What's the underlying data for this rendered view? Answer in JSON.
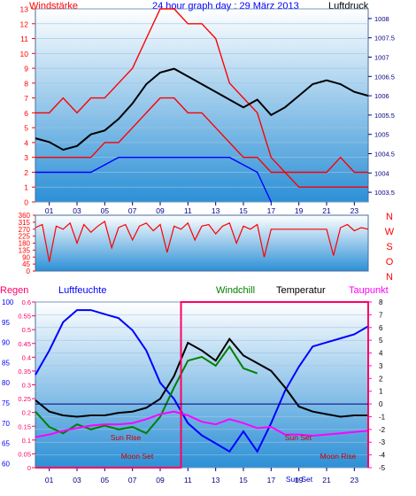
{
  "header": {
    "left_label": "Windstärke",
    "title": "24 hour graph day : 29 März 2013",
    "right_label": "Luftdruck"
  },
  "chart_data": [
    {
      "id": "wind-pressure",
      "type": "line",
      "title": "24 hour graph day : 29 März 2013",
      "x_ticks": [
        "01",
        "03",
        "05",
        "07",
        "09",
        "11",
        "13",
        "15",
        "17",
        "19",
        "21",
        "23"
      ],
      "xlim": [
        0,
        24
      ],
      "left_axis": {
        "label": "Windstärke",
        "range": [
          0,
          13
        ],
        "ticks": [
          0,
          1,
          2,
          3,
          4,
          5,
          6,
          7,
          8,
          9,
          10,
          11,
          12,
          13
        ]
      },
      "right_axis": {
        "label": "Luftdruck",
        "range": [
          1003.25,
          1008.25
        ],
        "ticks": [
          1003.5,
          1004,
          1004.5,
          1005,
          1005.5,
          1006,
          1006.5,
          1007,
          1007.5,
          1008
        ]
      },
      "series": [
        {
          "name": "Windstärke",
          "color": "#ff0000",
          "axis": "left",
          "x": [
            0,
            1,
            2,
            3,
            4,
            5,
            6,
            7,
            8,
            9,
            10,
            11,
            12,
            13,
            14,
            15,
            16,
            17,
            18,
            19,
            20,
            21,
            22,
            23,
            24
          ],
          "y": [
            3,
            3,
            3,
            3,
            3,
            4,
            4,
            5,
            6,
            7,
            7,
            6,
            6,
            5,
            4,
            3,
            3,
            2,
            2,
            1,
            1,
            1,
            1,
            1,
            1
          ]
        },
        {
          "name": "wind-gust",
          "color": "#ff0000",
          "axis": "left",
          "x": [
            0,
            1,
            2,
            3,
            4,
            5,
            6,
            7,
            8,
            9,
            10,
            11,
            12,
            13,
            14,
            15,
            16,
            17,
            18,
            19,
            20,
            21,
            22,
            23,
            24
          ],
          "y": [
            6,
            6,
            7,
            6,
            7,
            7,
            8,
            9,
            11,
            13,
            13,
            12,
            12,
            11,
            8,
            7,
            6,
            3,
            2,
            2,
            2,
            2,
            3,
            2,
            2
          ]
        },
        {
          "name": "wind-direction-band",
          "color": "#0000ff",
          "axis": "left",
          "x": [
            0,
            2,
            4,
            6,
            8,
            10,
            12,
            14,
            16,
            17
          ],
          "y": [
            2,
            2,
            2,
            3,
            3,
            3,
            3,
            3,
            2,
            0
          ]
        },
        {
          "name": "Luftdruck",
          "color": "#000000",
          "axis": "right",
          "x": [
            0,
            1,
            2,
            3,
            4,
            5,
            6,
            7,
            8,
            9,
            10,
            11,
            12,
            13,
            14,
            15,
            16,
            17,
            18,
            19,
            20,
            21,
            22,
            23,
            24
          ],
          "y": [
            1004.9,
            1004.8,
            1004.6,
            1004.7,
            1005.0,
            1005.1,
            1005.4,
            1005.8,
            1006.3,
            1006.6,
            1006.7,
            1006.5,
            1006.3,
            1006.1,
            1005.9,
            1005.7,
            1005.9,
            1005.5,
            1005.7,
            1006.0,
            1006.3,
            1006.4,
            1006.3,
            1006.1,
            1006.0
          ]
        }
      ]
    },
    {
      "id": "wind-direction",
      "type": "line",
      "xlim": [
        0,
        24
      ],
      "left_axis": {
        "range": [
          0,
          360
        ],
        "ticks": [
          0,
          45,
          90,
          135,
          180,
          225,
          270,
          315,
          360
        ]
      },
      "compass_labels": [
        "N",
        "W",
        "S",
        "O",
        "N"
      ],
      "series": [
        {
          "name": "wind-direction",
          "color": "#ff0000",
          "x": [
            0,
            0.5,
            1,
            1.5,
            2,
            2.5,
            3,
            3.5,
            4,
            4.5,
            5,
            5.5,
            6,
            6.5,
            7,
            7.5,
            8,
            8.5,
            9,
            9.5,
            10,
            10.5,
            11,
            11.5,
            12,
            12.5,
            13,
            13.5,
            14,
            14.5,
            15,
            15.5,
            16,
            16.5,
            17,
            18,
            19,
            20,
            21,
            21.5,
            22,
            22.5,
            23,
            23.5,
            24
          ],
          "y": [
            280,
            300,
            60,
            290,
            270,
            310,
            180,
            300,
            250,
            290,
            320,
            150,
            280,
            300,
            200,
            290,
            310,
            260,
            300,
            120,
            290,
            270,
            310,
            200,
            290,
            300,
            240,
            290,
            310,
            180,
            290,
            270,
            300,
            90,
            270,
            270,
            270,
            270,
            270,
            100,
            280,
            300,
            260,
            280,
            270
          ]
        }
      ]
    },
    {
      "id": "weather",
      "type": "line",
      "xlim": [
        0,
        24
      ],
      "labels": [
        "Regen",
        "Luftfeuchte",
        "Windchill",
        "Temperatur",
        "Taupunkt"
      ],
      "rain_axis": {
        "label": "Regen",
        "range": [
          0,
          0.6
        ],
        "ticks": [
          0,
          0.05,
          0.1,
          0.15,
          0.2,
          0.25,
          0.3,
          0.35,
          0.4,
          0.45,
          0.5,
          0.55,
          0.6
        ]
      },
      "humidity_axis": {
        "label": "Luftfeuchte",
        "range": [
          59,
          100
        ],
        "ticks": [
          60,
          65,
          70,
          75,
          80,
          85,
          90,
          95,
          100
        ]
      },
      "temp_axis": {
        "label": "Temperatur",
        "range": [
          -5,
          8
        ],
        "ticks": [
          -5,
          -4,
          -3,
          -2,
          -1,
          0,
          1,
          2,
          3,
          4,
          5,
          6,
          7,
          8
        ]
      },
      "annotations": [
        "Sun Rise",
        "Moon Set",
        "Sun Set",
        "Moon Rise",
        "Sun Set"
      ],
      "series": [
        {
          "name": "Luftfeuchte",
          "color": "#0000ff",
          "axis": "humidity",
          "x": [
            0,
            1,
            2,
            3,
            4,
            5,
            6,
            7,
            8,
            9,
            10,
            11,
            12,
            13,
            14,
            15,
            16,
            17,
            18,
            19,
            20,
            21,
            22,
            23,
            24
          ],
          "y": [
            82,
            88,
            95,
            98,
            98,
            97,
            96,
            93,
            88,
            80,
            76,
            70,
            67,
            65,
            63,
            68,
            63,
            70,
            78,
            84,
            89,
            90,
            91,
            92,
            94
          ]
        },
        {
          "name": "Temperatur",
          "color": "#000000",
          "axis": "temp",
          "x": [
            0,
            1,
            2,
            3,
            4,
            5,
            6,
            7,
            8,
            9,
            10,
            11,
            12,
            13,
            14,
            15,
            16,
            17,
            18,
            19,
            20,
            21,
            22,
            23,
            24
          ],
          "y": [
            0.3,
            -0.6,
            -0.9,
            -1.0,
            -0.9,
            -0.9,
            -0.7,
            -0.6,
            -0.3,
            0.4,
            2.2,
            4.8,
            4.2,
            3.4,
            5.1,
            3.8,
            3.2,
            2.6,
            1.3,
            -0.2,
            -0.6,
            -0.8,
            -1.0,
            -0.9,
            -0.9
          ]
        },
        {
          "name": "Windchill",
          "color": "#008000",
          "axis": "temp",
          "x": [
            0,
            1,
            2,
            3,
            4,
            5,
            6,
            7,
            8,
            9,
            10,
            11,
            12,
            13,
            14,
            15,
            16
          ],
          "y": [
            -0.6,
            -1.8,
            -2.3,
            -1.6,
            -2.0,
            -1.7,
            -2.0,
            -1.8,
            -2.3,
            -1.0,
            1.3,
            3.4,
            3.7,
            3.0,
            4.5,
            2.8,
            2.4
          ]
        },
        {
          "name": "Taupunkt",
          "color": "#ff00ff",
          "axis": "temp",
          "x": [
            0,
            1,
            2,
            3,
            4,
            5,
            6,
            7,
            8,
            9,
            10,
            11,
            12,
            13,
            14,
            15,
            16,
            17,
            18,
            19,
            20,
            21,
            22,
            23,
            24
          ],
          "y": [
            -2.6,
            -2.4,
            -2.1,
            -1.9,
            -1.7,
            -1.6,
            -1.6,
            -1.5,
            -1.2,
            -0.8,
            -0.6,
            -0.9,
            -1.4,
            -1.6,
            -1.2,
            -1.5,
            -1.9,
            -1.8,
            -2.4,
            -2.4,
            -2.5,
            -2.4,
            -2.3,
            -2.2,
            -2.1
          ]
        },
        {
          "name": "Regen",
          "color": "#ff0066",
          "axis": "rain",
          "x": [
            0,
            10.5,
            10.5,
            24,
            24
          ],
          "y": [
            0,
            0,
            0.6,
            0.6,
            0
          ]
        },
        {
          "name": "temperature-zero",
          "color": "#000080",
          "axis": "temp",
          "x": [
            0,
            24
          ],
          "y": [
            0,
            0
          ]
        }
      ]
    }
  ]
}
